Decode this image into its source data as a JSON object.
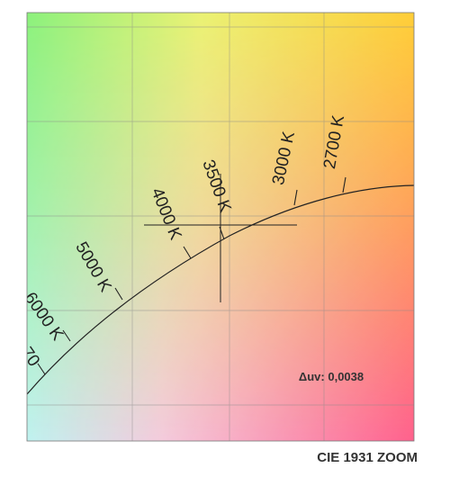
{
  "isotherms": [
    "2700 K",
    "3000 K",
    "3500 K",
    "4000 K",
    "5000 K",
    "6000 K",
    "70"
  ],
  "delta_uv": "Δuv: 0,0038",
  "caption": "CIE 1931 ZOOM"
}
